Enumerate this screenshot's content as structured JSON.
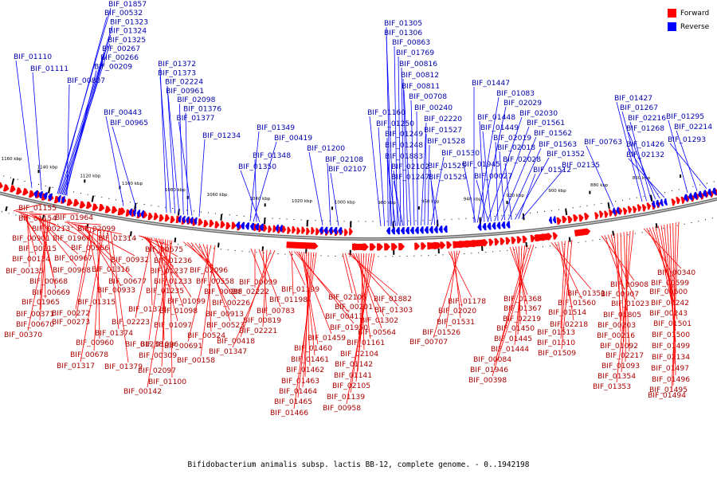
{
  "title": "Bifidobacterium animalis subsp. lactis BB-12, complete genome. - 0..1942198",
  "legend": [
    {
      "label": "Forward",
      "color": "#ff0000"
    },
    {
      "label": "Reverse",
      "color": "#0000ff"
    }
  ],
  "colors": {
    "forward": "#ff0000",
    "reverse": "#0000ff",
    "backbone": "#8a8a8a"
  },
  "ticks": [
    {
      "label": "1160 kbp"
    },
    {
      "label": "1140 kbp"
    },
    {
      "label": "1120 kbp"
    },
    {
      "label": "1100 kbp"
    },
    {
      "label": "1080 kbp"
    },
    {
      "label": "1060 kbp"
    },
    {
      "label": "1040 kbp"
    },
    {
      "label": "1020 kbp"
    },
    {
      "label": "1000 kbp"
    },
    {
      "label": "980 kbp"
    },
    {
      "label": "960 kbp"
    },
    {
      "label": "940 kbp"
    },
    {
      "label": "920 kbp"
    },
    {
      "label": "900 kbp"
    },
    {
      "label": "880 kbp"
    },
    {
      "label": "860 kbp"
    }
  ],
  "reverse_groups": [
    {
      "labels": [
        "BIF_01110"
      ]
    },
    {
      "labels": [
        "BIF_01111"
      ]
    },
    {
      "labels": [
        "BIF_01857",
        "BIF_00532",
        "BIF_01323",
        "BIF_01324",
        "BIF_01325",
        "BIF_00267",
        "BIF_00266",
        "BIF_00209",
        "BIF_00807"
      ]
    },
    {
      "labels": [
        "BIF_00443",
        "BIF_00965"
      ]
    },
    {
      "labels": [
        "BIF_01372",
        "BIF_01373",
        "BIF_02224",
        "BIF_00961",
        "BIF_02098",
        "BIF_01376",
        "BIF_01377"
      ]
    },
    {
      "labels": [
        "BIF_01234"
      ]
    },
    {
      "labels": [
        "BIF_01349",
        "BIF_00419",
        "BIF_01348",
        "BIF_01350"
      ]
    },
    {
      "labels": [
        "BIF_01200",
        "BIF_02108",
        "BIF_02107"
      ]
    },
    {
      "labels": [
        "BIF_01305",
        "BIF_01306",
        "BIF_00863",
        "BIF_01769",
        "BIF_00816",
        "BIF_00812",
        "BIF_00811",
        "BIF_00708",
        "BIF_00240",
        "BIF_02220",
        "BIF_01527",
        "BIF_01528",
        "BIF_01530",
        "BIF_01525",
        "BIF_01529"
      ]
    },
    {
      "labels": [
        "BIF_01160",
        "BIF_01250",
        "BIF_01249",
        "BIF_01248",
        "BIF_01883",
        "BIF_02102",
        "BIF_01247"
      ]
    },
    {
      "labels": [
        "BIF_01945",
        "BIF_00027"
      ]
    },
    {
      "labels": [
        "BIF_01447",
        "BIF_01083",
        "BIF_02029",
        "BIF_01448",
        "BIF_02030",
        "BIF_01449",
        "BIF_01561",
        "BIF_02019",
        "BIF_01562",
        "BIF_02018",
        "BIF_01563",
        "BIF_02028",
        "BIF_01352",
        "BIF_01512",
        "BIF_02135"
      ]
    },
    {
      "labels": [
        "BIF_00763"
      ]
    },
    {
      "labels": [
        "BIF_01427",
        "BIF_01267",
        "BIF_02216",
        "BIF_01268",
        "BIF_01426",
        "BIF_02132"
      ]
    },
    {
      "labels": [
        "BIF_01295",
        "BIF_02214",
        "BIF_01293"
      ]
    }
  ],
  "forward_groups": [
    {
      "labels": [
        "BIF_01155",
        "BIF_01154",
        "BIF_00213",
        "BIF_00901",
        "BIF_00215",
        "BIF_00134",
        "BIF_00135",
        "BIF_01964",
        "BIF_01966",
        "BIF_00967",
        "BIF_00968",
        "BIF_00668",
        "BIF_00669",
        "BIF_01965",
        "BIF_00371",
        "BIF_00670",
        "BIF_00370"
      ]
    },
    {
      "labels": [
        "BIF_02099",
        "BIF_00966",
        "BIF_01314",
        "BIF_01316",
        "BIF_00932",
        "BIF_00677",
        "BIF_00933",
        "BIF_01315",
        "BIF_00272",
        "BIF_00273",
        "BIF_00960",
        "BIF_00678",
        "BIF_01317",
        "BIF_01374",
        "BIF_01379"
      ]
    },
    {
      "labels": [
        "BIF_00675",
        "BIF_01236",
        "BIF_01237",
        "BIF_01233",
        "BIF_01235",
        "BIF_01378",
        "BIF_02223",
        "BIF_01099",
        "BIF_01097",
        "BIF_01098",
        "BIF_01096",
        "BIF_01238",
        "BIF_00309",
        "BIF_02097",
        "BIF_01100",
        "BIF_00142"
      ]
    },
    {
      "labels": [
        "BIF_02096",
        "BIF_00558",
        "BIF_00088",
        "BIF_00226",
        "BIF_00913",
        "BIF_00523",
        "BIF_00524",
        "BIF_00691",
        "BIF_00158"
      ]
    },
    {
      "labels": [
        "BIF_00099",
        "BIF_02222",
        "BIF_00783",
        "BIF_00819",
        "BIF_02221",
        "BIF_00418",
        "BIF_01347"
      ]
    },
    {
      "labels": [
        "BIF_01199",
        "BIF_01198",
        "BIF_00413",
        "BIF_01950",
        "BIF_01459",
        "BIF_01460",
        "BIF_01461",
        "BIF_01462",
        "BIF_01463",
        "BIF_01464",
        "BIF_01465",
        "BIF_01466"
      ]
    },
    {
      "labels": [
        "BIF_02106",
        "BIF_00201",
        "BIF_01882",
        "BIF_01303",
        "BIF_01302",
        "BIF_00564",
        "BIF_01161",
        "BIF_02104",
        "BIF_01142",
        "BIF_01141",
        "BIF_02105",
        "BIF_01139",
        "BIF_00958"
      ]
    },
    {
      "labels": [
        "BIF_01178",
        "BIF_02020",
        "BIF_01531",
        "BIF_01526",
        "BIF_00707"
      ]
    },
    {
      "labels": [
        "BIF_01368",
        "BIF_01367",
        "BIF_02219",
        "BIF_01450",
        "BIF_01445",
        "BIF_01444",
        "BIF_00084",
        "BIF_01946",
        "BIF_00398"
      ]
    },
    {
      "labels": [
        "BIF_01351",
        "BIF_01560",
        "BIF_01514",
        "BIF_02218",
        "BIF_01513",
        "BIF_01510",
        "BIF_01509"
      ]
    },
    {
      "labels": [
        "BIF_00908",
        "BIF_00907",
        "BIF_01023",
        "BIF_01805",
        "BIF_00203",
        "BIF_00216",
        "BIF_01092",
        "BIF_02217",
        "BIF_01093",
        "BIF_01354",
        "BIF_01353"
      ]
    },
    {
      "labels": [
        "BIF_00340",
        "BIF_00599",
        "BIF_00600",
        "BIF_00242",
        "BIF_00243",
        "BIF_01501",
        "BIF_01500",
        "BIF_01499",
        "BIF_02134",
        "BIF_01497",
        "BIF_01496",
        "BIF_01495",
        "BIF_01494"
      ]
    }
  ]
}
